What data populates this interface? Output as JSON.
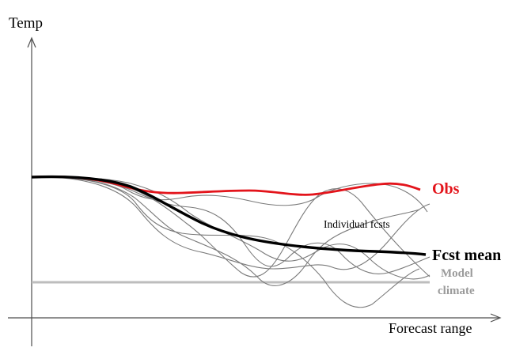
{
  "axes": {
    "y_label": "Temp",
    "x_label": "Forecast range"
  },
  "labels": {
    "obs": "Obs",
    "individual": "Individual fcsts",
    "mean": "Fcst mean",
    "climate_line1": "Model",
    "climate_line2": "climate"
  },
  "colors": {
    "obs": "#e3141b",
    "mean": "#000000",
    "individual": "#7a7a7a",
    "climate": "#bdbdbd",
    "axis": "#4d4d4d",
    "climate_label": "#9a9a9a"
  },
  "icons": {
    "y_arrow": "arrow-up-icon",
    "x_arrow": "arrow-right-icon"
  }
}
